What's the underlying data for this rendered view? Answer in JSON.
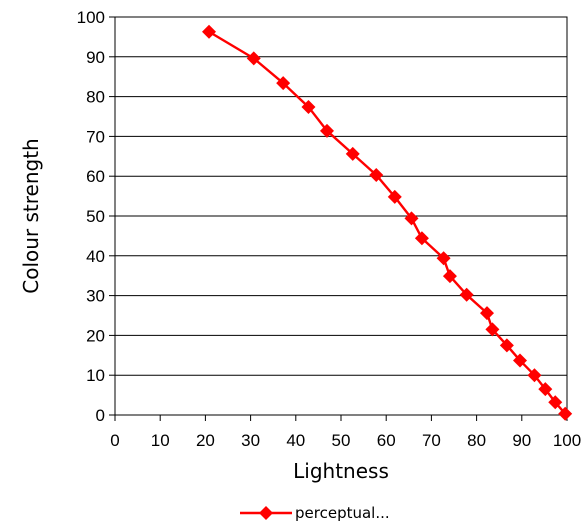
{
  "chart_data": {
    "type": "line",
    "title": "",
    "xlabel": "Lightness",
    "ylabel": "Colour strength",
    "xlim": [
      0,
      100
    ],
    "ylim": [
      0,
      100
    ],
    "x_ticks": [
      0,
      10,
      20,
      30,
      40,
      50,
      60,
      70,
      80,
      90,
      100
    ],
    "y_ticks": [
      0,
      10,
      20,
      30,
      40,
      50,
      60,
      70,
      80,
      90,
      100
    ],
    "x_tick_labels": [
      "0",
      "10",
      "20",
      "30",
      "40",
      "50",
      "60",
      "70",
      "80",
      "90",
      "100"
    ],
    "y_tick_labels": [
      "0",
      "10",
      "20",
      "30",
      "40",
      "50",
      "60",
      "70",
      "80",
      "90",
      "100"
    ],
    "grid": "horizontal",
    "legend": "bottom",
    "series": [
      {
        "name": "perceptual...",
        "color": "#ff0000",
        "marker": "diamond",
        "x": [
          20.8,
          30.7,
          37.2,
          42.8,
          46.9,
          52.6,
          57.8,
          61.9,
          65.6,
          67.9,
          72.7,
          74.1,
          77.8,
          82.3,
          83.5,
          86.7,
          89.6,
          92.8,
          95.2,
          97.4,
          99.6
        ],
        "y": [
          96.3,
          89.6,
          83.4,
          77.4,
          71.4,
          65.6,
          60.3,
          54.8,
          49.4,
          44.4,
          39.4,
          34.9,
          30.2,
          25.6,
          21.5,
          17.5,
          13.7,
          10.0,
          6.5,
          3.2,
          0.3
        ]
      }
    ]
  }
}
